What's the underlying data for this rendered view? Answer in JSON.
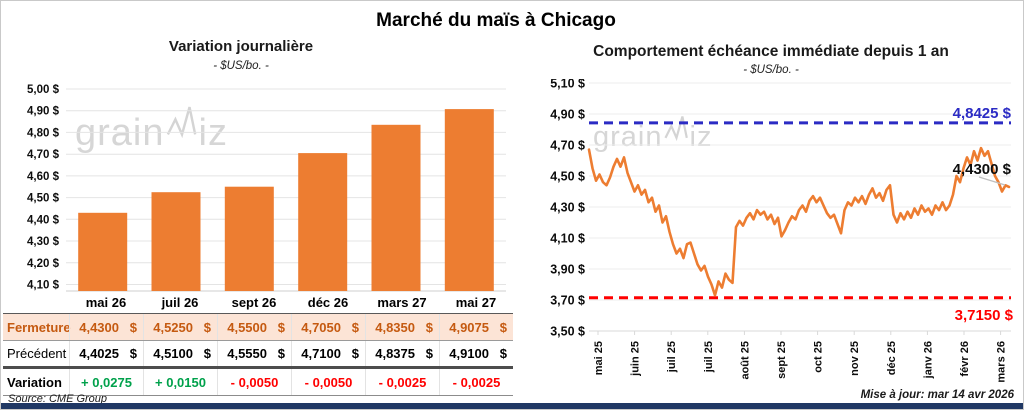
{
  "header": {
    "title": "Marché du maïs à Chicago"
  },
  "watermark_text": {
    "part1": "grain",
    "part2": "iz"
  },
  "left_table": {
    "columns": [
      "mai 26",
      "juil 26",
      "sept 26",
      "déc 26",
      "mars 27",
      "mai 27"
    ],
    "rows": [
      {
        "label": "Fermeture",
        "currency": "$",
        "values": [
          "4,4300",
          "4,5250",
          "4,5500",
          "4,7050",
          "4,8350",
          "4,9075"
        ]
      },
      {
        "label": "Précédent",
        "currency": "$",
        "values": [
          "4,4025",
          "4,5100",
          "4,5550",
          "4,7100",
          "4,8375",
          "4,9100"
        ]
      },
      {
        "label": "Variation",
        "values": [
          "+ 0,0275",
          "+ 0,0150",
          "- 0,0050",
          "- 0,0050",
          "- 0,0025",
          "- 0,0025"
        ],
        "colors": [
          "#00A14B",
          "#00A14B",
          "#FF0000",
          "#FF0000",
          "#FF0000",
          "#FF0000"
        ]
      }
    ]
  },
  "footer": {
    "source": "Source: CME Group",
    "updated": "Mise à jour: mar 14 avr 2026"
  },
  "chart_data": [
    {
      "type": "bar",
      "title": "Variation journalière",
      "subtitle": "- $US/bo. -",
      "categories": [
        "mai 26",
        "juil 26",
        "sept 26",
        "déc 26",
        "mars 27",
        "mai 27"
      ],
      "values": [
        4.43,
        4.525,
        4.55,
        4.705,
        4.835,
        4.9075
      ],
      "bar_color": "#ED7D31",
      "ylim": [
        4.07,
        5.0
      ],
      "yticks": [
        5.0,
        4.9,
        4.8,
        4.7,
        4.6,
        4.5,
        4.4,
        4.3,
        4.2,
        4.1
      ],
      "ytick_labels": [
        "5,00 $",
        "4,90 $",
        "4,80 $",
        "4,70 $",
        "4,60 $",
        "4,50 $",
        "4,40 $",
        "4,30 $",
        "4,20 $",
        "4,10 $"
      ],
      "grid": true,
      "legend": "none"
    },
    {
      "type": "line",
      "title": "Comportement échéance immédiate depuis 1 an",
      "subtitle": "- $US/bo. -",
      "ylim": [
        3.5,
        5.1
      ],
      "yticks": [
        5.1,
        4.9,
        4.7,
        4.5,
        4.3,
        4.1,
        3.9,
        3.7,
        3.5
      ],
      "ytick_labels": [
        "5,10 $",
        "4,90 $",
        "4,70 $",
        "4,50 $",
        "4,30 $",
        "4,10 $",
        "3,90 $",
        "3,70 $",
        "3,50 $"
      ],
      "x_ticklabels": [
        "mai 25",
        "juin 25",
        "juil 25",
        "juil 25",
        "août 25",
        "sept 25",
        "oct 25",
        "nov 25",
        "déc 25",
        "janv 26",
        "févr 26",
        "mars 26"
      ],
      "grid": true,
      "legend": "none",
      "series": [
        {
          "name": "échéance immédiate",
          "color": "#ED7D31",
          "values": [
            4.67,
            4.55,
            4.47,
            4.51,
            4.46,
            4.44,
            4.49,
            4.56,
            4.61,
            4.56,
            4.62,
            4.52,
            4.46,
            4.4,
            4.44,
            4.38,
            4.41,
            4.33,
            4.36,
            4.27,
            4.31,
            4.2,
            4.24,
            4.14,
            4.06,
            4.0,
            4.03,
            3.97,
            4.06,
            4.07,
            4.0,
            3.93,
            3.89,
            3.92,
            3.85,
            3.8,
            3.73,
            3.82,
            3.78,
            3.87,
            3.83,
            3.81,
            4.17,
            4.21,
            4.18,
            4.23,
            4.26,
            4.22,
            4.28,
            4.25,
            4.27,
            4.22,
            4.25,
            4.19,
            4.23,
            4.11,
            4.15,
            4.2,
            4.24,
            4.22,
            4.28,
            4.31,
            4.27,
            4.34,
            4.37,
            4.33,
            4.36,
            4.31,
            4.26,
            4.23,
            4.25,
            4.19,
            4.13,
            4.28,
            4.33,
            4.31,
            4.36,
            4.33,
            4.37,
            4.32,
            4.38,
            4.42,
            4.36,
            4.39,
            4.34,
            4.41,
            4.44,
            4.25,
            4.2,
            4.26,
            4.22,
            4.27,
            4.23,
            4.29,
            4.25,
            4.31,
            4.27,
            4.29,
            4.25,
            4.31,
            4.28,
            4.33,
            4.28,
            4.31,
            4.38,
            4.5,
            4.46,
            4.55,
            4.62,
            4.57,
            4.66,
            4.6,
            4.68,
            4.63,
            4.66,
            4.58,
            4.5,
            4.46,
            4.4,
            4.44,
            4.43
          ]
        }
      ],
      "ref_lines": [
        {
          "label": "4,8425 $",
          "value": 4.8425,
          "color": "#2B2BC4",
          "style": "dashed"
        },
        {
          "label": "3,7150 $",
          "value": 3.715,
          "color": "#FF0000",
          "style": "dashed"
        }
      ],
      "last_label": "4,4300 $",
      "last_value": 4.43
    }
  ]
}
